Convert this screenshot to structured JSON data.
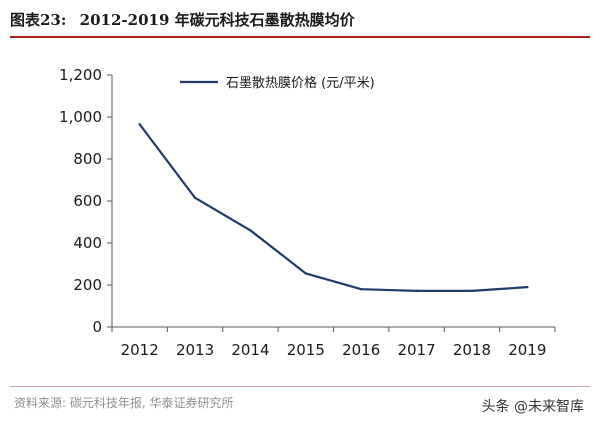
{
  "header": {
    "figure_label": "图表23:",
    "title": "2012-2019 年碳元科技石墨散热膜均价"
  },
  "footer": {
    "source": "资料来源: 碳元科技年报, 华泰证券研究所",
    "watermark": "头条 @未来智库"
  },
  "colors": {
    "line": "#1f3a6b",
    "accent_rule": "#b11d1d",
    "axis": "#595959"
  },
  "chart_data": {
    "type": "line",
    "categories": [
      "2012",
      "2013",
      "2014",
      "2015",
      "2016",
      "2017",
      "2018",
      "2019"
    ],
    "series": [
      {
        "name": "石墨散热膜价格 (元/平米)",
        "values": [
          965,
          615,
          460,
          255,
          180,
          172,
          172,
          190
        ]
      }
    ],
    "yticks": [
      "0",
      "200",
      "400",
      "600",
      "800",
      "1,000",
      "1,200"
    ],
    "ylim": [
      0,
      1200
    ],
    "grid": false,
    "legend_position": "top-left"
  }
}
